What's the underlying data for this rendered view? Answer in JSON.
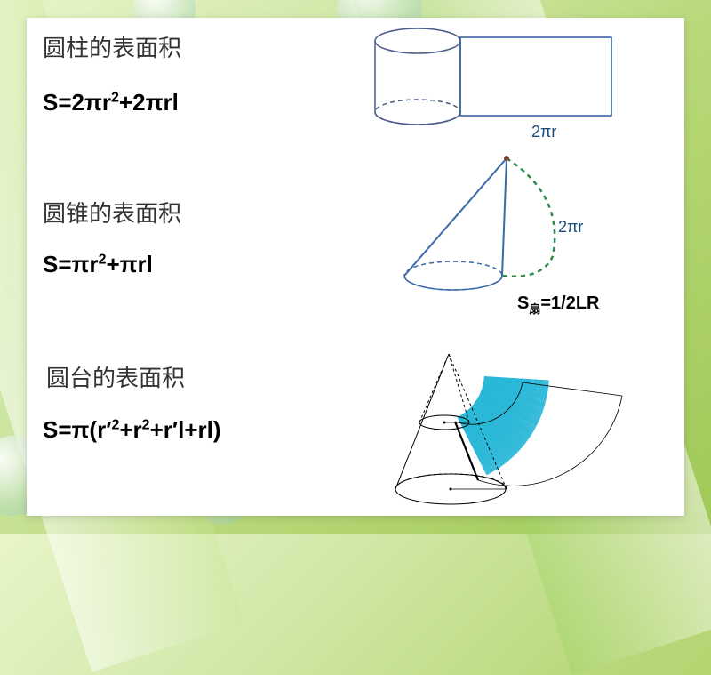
{
  "sections": {
    "cylinder": {
      "title": "圆柱的表面积",
      "formula_html": "S=2πr<sup>2</sup>+2πrl",
      "annotation": "2πr"
    },
    "cone": {
      "title": "圆锥的表面积",
      "formula_html": "S=πr<sup>2</sup>+πrl",
      "annotation": "2πr",
      "sector_formula_html": "S<sub>扇</sub>=1/2LR"
    },
    "frustum": {
      "title": "圆台的表面积",
      "formula_html": "S=π(r′<sup>2</sup>+r<sup>2</sup>+r′l+rl)"
    }
  },
  "colors": {
    "cylinder_stroke": "#4a5a8a",
    "cone_stroke": "#3a6aa8",
    "sector_dash": "#2a8a4a",
    "net_fill": "#2ab8d8",
    "frustum_stroke": "#000000"
  }
}
